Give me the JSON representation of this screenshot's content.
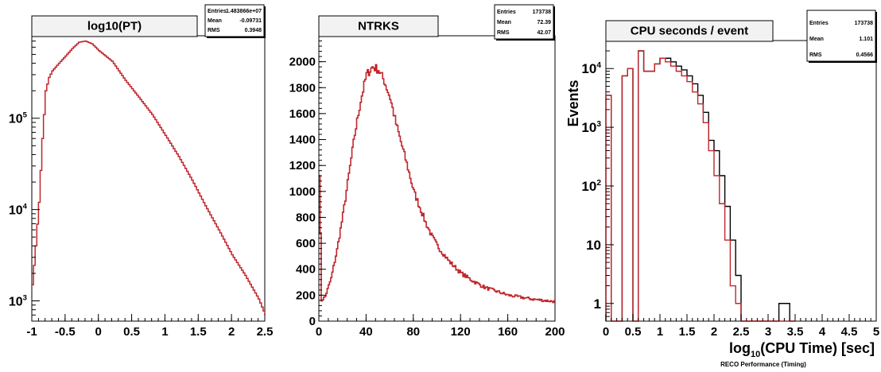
{
  "chart_data": [
    {
      "type": "line",
      "title": "log10(PT)",
      "xlabel": "",
      "ylabel": "",
      "xlim": [
        -1,
        2.5
      ],
      "ylim_log": [
        600,
        800000
      ],
      "y_scale": "log",
      "grid": false,
      "x_tick_labels": [
        "-1",
        "-0.5",
        "0",
        "0.5",
        "1",
        "1.5",
        "2",
        "2.5"
      ],
      "x_tick_values": [
        -1,
        -0.5,
        0,
        0.5,
        1,
        1.5,
        2,
        2.5
      ],
      "y_tick_labels": [
        {
          "base": "10",
          "exp": "3"
        },
        {
          "base": "10",
          "exp": "4"
        },
        {
          "base": "10",
          "exp": "5"
        }
      ],
      "y_tick_values": [
        1000,
        10000,
        100000
      ],
      "series": [
        {
          "color": "#c0262c",
          "x": [
            -1.0,
            -0.95,
            -0.9,
            -0.85,
            -0.8,
            -0.75,
            -0.7,
            -0.6,
            -0.5,
            -0.4,
            -0.3,
            -0.2,
            -0.1,
            0.0,
            0.2,
            0.4,
            0.6,
            0.8,
            1.0,
            1.2,
            1.4,
            1.6,
            1.8,
            2.0,
            2.2,
            2.4,
            2.5
          ],
          "y": [
            1500,
            4000,
            12000,
            60000,
            200000,
            280000,
            330000,
            400000,
            480000,
            580000,
            680000,
            700000,
            650000,
            550000,
            420000,
            260000,
            170000,
            110000,
            65000,
            38000,
            21000,
            11000,
            6000,
            3200,
            1900,
            1050,
            700
          ]
        }
      ],
      "stats": [
        {
          "label": "Entries",
          "value": "1.483866e+07"
        },
        {
          "label": "Mean",
          "value": "-0.09731"
        },
        {
          "label": "RMS",
          "value": "0.3948"
        }
      ]
    },
    {
      "type": "line",
      "title": "NTRKS",
      "xlabel": "",
      "ylabel": "",
      "xlim": [
        0,
        200
      ],
      "ylim": [
        0,
        2200
      ],
      "grid": false,
      "x_tick_labels": [
        "0",
        "40",
        "80",
        "120",
        "160",
        "200"
      ],
      "x_tick_values": [
        0,
        40,
        80,
        120,
        160,
        200
      ],
      "y_tick_labels": [
        "0",
        "200",
        "400",
        "600",
        "800",
        "1000",
        "1200",
        "1400",
        "1600",
        "1800",
        "2000"
      ],
      "y_tick_values": [
        0,
        200,
        400,
        600,
        800,
        1000,
        1200,
        1400,
        1600,
        1800,
        2000
      ],
      "series": [
        {
          "color": "#c0262c",
          "x": [
            0,
            2,
            5,
            10,
            15,
            20,
            25,
            30,
            35,
            40,
            45,
            50,
            55,
            60,
            65,
            70,
            75,
            80,
            85,
            90,
            95,
            100,
            110,
            120,
            130,
            140,
            150,
            160,
            170,
            180,
            190,
            200
          ],
          "y": [
            1150,
            160,
            190,
            330,
            550,
            820,
            1130,
            1440,
            1700,
            1900,
            1960,
            1940,
            1850,
            1720,
            1520,
            1350,
            1180,
            1000,
            880,
            760,
            660,
            580,
            460,
            370,
            310,
            260,
            230,
            200,
            185,
            170,
            160,
            150
          ]
        }
      ],
      "stats": [
        {
          "label": "Entries",
          "value": "173738"
        },
        {
          "label": "Mean",
          "value": "72.39"
        },
        {
          "label": "RMS",
          "value": "42.07"
        }
      ]
    },
    {
      "type": "bar",
      "title": "CPU seconds / event",
      "xlabel_main": "log",
      "xlabel_sub": "10",
      "xlabel_rest": "(CPU Time) [sec]",
      "ylabel": "Events",
      "xlim": [
        0,
        5
      ],
      "y_scale": "log",
      "ylim_log": [
        0.5,
        30000
      ],
      "grid": false,
      "x_tick_labels": [
        "0",
        "0.5",
        "1",
        "1.5",
        "2",
        "2.5",
        "3",
        "3.5",
        "4",
        "4.5",
        "5"
      ],
      "x_tick_values": [
        0,
        0.5,
        1,
        1.5,
        2,
        2.5,
        3,
        3.5,
        4,
        4.5,
        5
      ],
      "y_tick_labels": [
        {
          "base": "1",
          "exp": ""
        },
        {
          "base": "10",
          "exp": ""
        },
        {
          "base": "10",
          "exp": "2"
        },
        {
          "base": "10",
          "exp": "3"
        },
        {
          "base": "10",
          "exp": "4"
        }
      ],
      "y_tick_values": [
        1,
        10,
        100,
        1000,
        10000
      ],
      "bin_edges": [
        0.0,
        0.1,
        0.2,
        0.3,
        0.4,
        0.5,
        0.6,
        0.7,
        0.8,
        0.9,
        1.0,
        1.1,
        1.2,
        1.3,
        1.4,
        1.5,
        1.6,
        1.7,
        1.8,
        1.9,
        2.0,
        2.1,
        2.2,
        2.3,
        2.4,
        2.5,
        2.6,
        2.7,
        2.8,
        2.9,
        3.0,
        3.1,
        3.2,
        3.3,
        3.4,
        3.5
      ],
      "series": [
        {
          "name": "",
          "color": "#000000",
          "values": [
            3500,
            0,
            0,
            7500,
            10000,
            0,
            20000,
            9000,
            9000,
            12000,
            15000,
            15000,
            13000,
            11000,
            9500,
            7500,
            5500,
            3500,
            1800,
            600,
            400,
            150,
            45,
            12,
            3,
            0,
            0,
            0,
            0,
            0,
            0,
            0,
            1,
            1,
            0
          ]
        },
        {
          "name": "",
          "color": "#c0262c",
          "values": [
            3500,
            0,
            0,
            7500,
            10000,
            0,
            20000,
            9000,
            9000,
            12000,
            15000,
            13000,
            11000,
            9000,
            7500,
            6000,
            4000,
            2500,
            1200,
            400,
            150,
            50,
            12,
            2,
            1,
            0,
            0,
            0,
            0,
            0,
            0,
            0,
            0,
            0,
            0
          ]
        }
      ],
      "stats": [
        {
          "label": "Entries",
          "value": "173738"
        },
        {
          "label": "Mean",
          "value": "1.101"
        },
        {
          "label": "RMS",
          "value": "0.4566"
        }
      ],
      "footer": "RECO Performance (Timing)"
    }
  ]
}
